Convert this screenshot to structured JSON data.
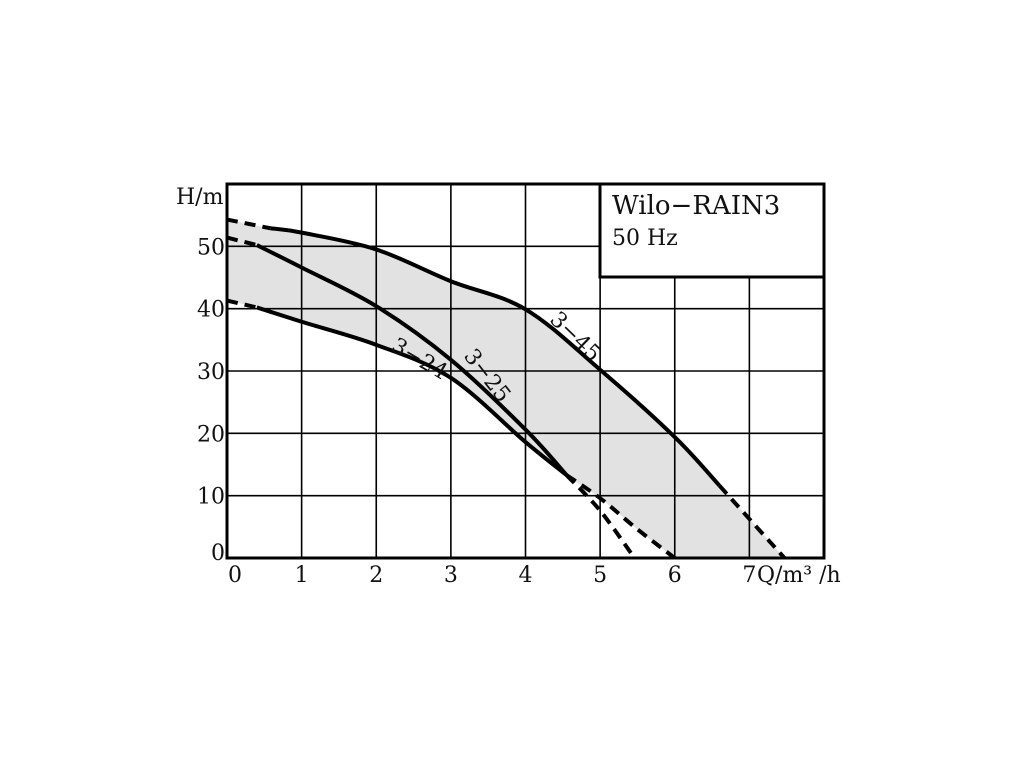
{
  "chart_data": {
    "type": "line",
    "title": "Wilo−RAIN3",
    "subtitle": "50 Hz",
    "xlabel": "Q/m³ /h",
    "ylabel": "H/m",
    "xlim": [
      0,
      8
    ],
    "ylim": [
      0,
      60
    ],
    "x_ticks": [
      "0",
      "1",
      "2",
      "3",
      "4",
      "5",
      "6",
      "7"
    ],
    "y_ticks": [
      "0",
      "10",
      "20",
      "30",
      "40",
      "50"
    ],
    "grid": true,
    "fill_color": "#e2e2e2",
    "line_color": "#000000",
    "series": [
      {
        "name": "3−45",
        "dashed_start": [
          [
            0,
            54.3
          ],
          [
            0.58,
            52.9
          ]
        ],
        "solid": [
          [
            0.58,
            52.9
          ],
          [
            1,
            52.2
          ],
          [
            2,
            49.5
          ],
          [
            3,
            44.4
          ],
          [
            4,
            39.9
          ],
          [
            5,
            30.2
          ],
          [
            6,
            19.4
          ],
          [
            6.6,
            11.6
          ]
        ],
        "dashed_end": [
          [
            6.6,
            11.6
          ],
          [
            7.47,
            0
          ]
        ]
      },
      {
        "name": "3−25",
        "dashed_start": [
          [
            0,
            51.4
          ],
          [
            0.4,
            50.2
          ]
        ],
        "solid": [
          [
            0.4,
            50.2
          ],
          [
            1,
            46.6
          ],
          [
            2,
            40.4
          ],
          [
            3,
            31.8
          ],
          [
            4,
            20.6
          ],
          [
            4.55,
            13.3
          ]
        ],
        "dashed_end": [
          [
            4.55,
            13.3
          ],
          [
            5.0,
            7.6
          ],
          [
            5.46,
            0
          ]
        ]
      },
      {
        "name": "3−24",
        "dashed_start": [
          [
            0,
            41.3
          ],
          [
            0.4,
            40.2
          ]
        ],
        "solid": [
          [
            0.4,
            40.2
          ],
          [
            1,
            37.9
          ],
          [
            2,
            34.2
          ],
          [
            3,
            28.9
          ],
          [
            4,
            18.6
          ],
          [
            4.55,
            13.3
          ]
        ],
        "dashed_end": [
          [
            4.55,
            13.3
          ],
          [
            5.0,
            9.6
          ],
          [
            5.5,
            4.6
          ],
          [
            6.0,
            0
          ]
        ]
      }
    ]
  }
}
